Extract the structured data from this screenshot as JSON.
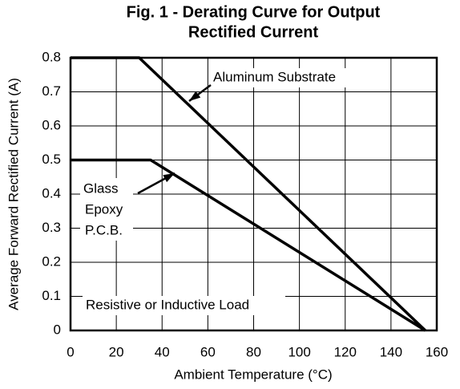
{
  "chart_data": {
    "type": "line",
    "title": [
      "Fig. 1 - Derating Curve for Output",
      "Rectified Current"
    ],
    "xlabel": "Ambient Temperature (°C)",
    "ylabel": "Average Forward Rectified Current (A)",
    "series": [
      {
        "name": "Aluminum Substrate",
        "color": "#000000",
        "x": [
          0,
          30,
          155
        ],
        "values": [
          0.8,
          0.8,
          0
        ]
      },
      {
        "name": "Glass Epoxy P.C.B.",
        "color": "#000000",
        "x": [
          0,
          35,
          155
        ],
        "values": [
          0.5,
          0.5,
          0
        ]
      }
    ],
    "annotations": {
      "aluminum": "Aluminum Substrate",
      "glass": [
        "Glass",
        "Epoxy",
        "P.C.B."
      ],
      "load": "Resistive or Inductive Load"
    },
    "xlim": [
      0,
      160
    ],
    "xticks": [
      0,
      20,
      40,
      60,
      80,
      100,
      120,
      140,
      160
    ],
    "ylim": [
      0,
      0.8
    ],
    "yticks": [
      0,
      0.1,
      0.2,
      0.3,
      0.4,
      0.5,
      0.6,
      0.7,
      0.8
    ],
    "grid": true
  }
}
